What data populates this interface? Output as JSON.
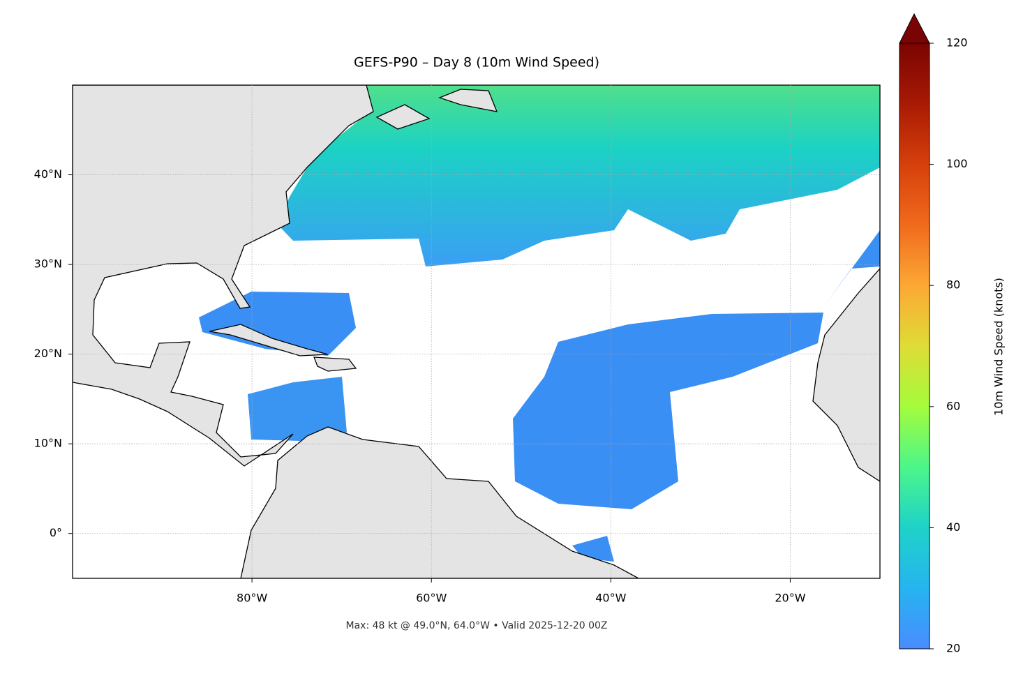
{
  "chart_data": {
    "type": "map",
    "title": "GEFS-P90 – Day 8 (10m Wind Speed)",
    "xlim": [
      -100,
      -10
    ],
    "ylim": [
      -5,
      50
    ],
    "xticks": [
      {
        "value": -80,
        "label": "80°W"
      },
      {
        "value": -60,
        "label": "60°W"
      },
      {
        "value": -40,
        "label": "40°W"
      },
      {
        "value": -20,
        "label": "20°W"
      }
    ],
    "yticks": [
      {
        "value": 0,
        "label": "0°"
      },
      {
        "value": 10,
        "label": "10°N"
      },
      {
        "value": 20,
        "label": "20°N"
      },
      {
        "value": 30,
        "label": "30°N"
      },
      {
        "value": 40,
        "label": "40°N"
      }
    ],
    "grid": true,
    "colorbar": {
      "label": "10m Wind Speed (knots)",
      "lim": [
        20,
        120
      ],
      "ticks": [
        20,
        40,
        60,
        80,
        100,
        120
      ]
    },
    "note": "Max: 48 kt @ 49.0°N, 64.0°W • Valid 2025-12-20 00Z"
  }
}
